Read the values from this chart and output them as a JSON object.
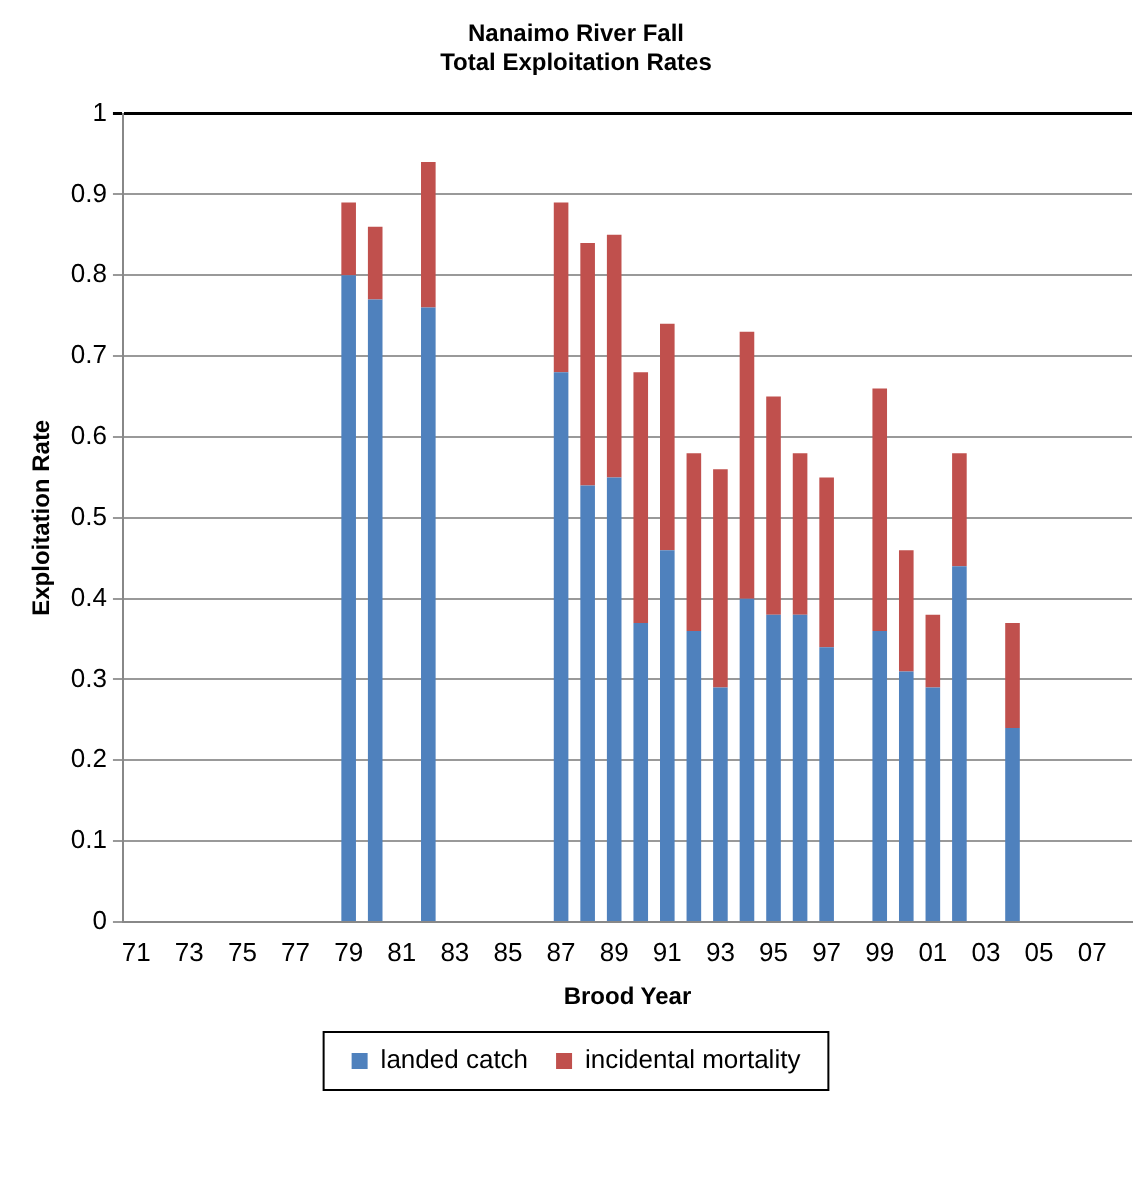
{
  "chart_data": {
    "type": "bar",
    "title": [
      "Nanaimo River Fall",
      "Total Exploitation Rates"
    ],
    "xlabel": "Brood Year",
    "ylabel": "Exploitation Rate",
    "categories": [
      "71",
      null,
      "73",
      null,
      "75",
      null,
      "77",
      null,
      "79",
      null,
      "81",
      null,
      "83",
      null,
      "85",
      null,
      "87",
      null,
      "89",
      null,
      "91",
      null,
      "93",
      null,
      "95",
      null,
      "97",
      null,
      "99",
      null,
      "01",
      null,
      "03",
      null,
      "05",
      null,
      "07",
      null
    ],
    "stacked": true,
    "series": [
      {
        "name": "landed catch",
        "color": "#4f81bd",
        "values": [
          null,
          null,
          null,
          null,
          null,
          null,
          null,
          null,
          0.8,
          0.77,
          null,
          0.76,
          null,
          null,
          null,
          null,
          0.68,
          0.54,
          0.55,
          0.37,
          0.46,
          0.36,
          0.29,
          0.4,
          0.38,
          0.38,
          0.34,
          null,
          0.36,
          0.31,
          0.29,
          0.44,
          null,
          0.24,
          null,
          null,
          null,
          null
        ]
      },
      {
        "name": "incidental mortality",
        "color": "#c0504d",
        "values": [
          null,
          null,
          null,
          null,
          null,
          null,
          null,
          null,
          0.09,
          0.09,
          null,
          0.18,
          null,
          null,
          null,
          null,
          0.21,
          0.3,
          0.3,
          0.31,
          0.28,
          0.22,
          0.27,
          0.33,
          0.27,
          0.2,
          0.21,
          null,
          0.3,
          0.15,
          0.09,
          0.14,
          null,
          0.13,
          null,
          null,
          null,
          null
        ]
      }
    ],
    "ylim": [
      0,
      1
    ],
    "yticks": [
      0,
      0.1,
      0.2,
      0.3,
      0.4,
      0.5,
      0.6,
      0.7,
      0.8,
      0.9,
      1
    ],
    "grid": "y",
    "legend": "bottom"
  }
}
